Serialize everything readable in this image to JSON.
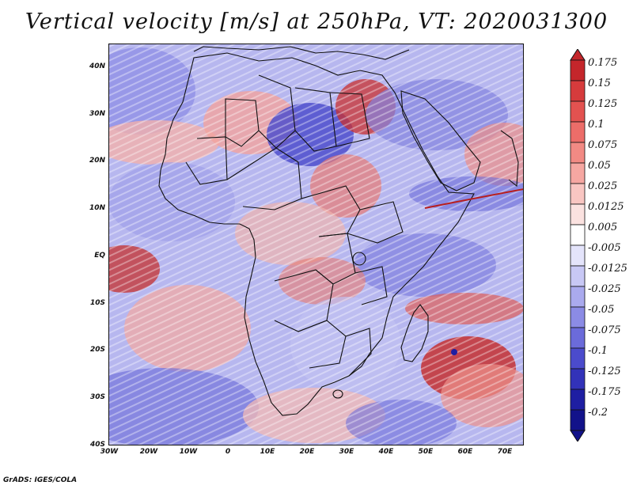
{
  "title": "Vertical velocity [m/s] at 250hPa, VT: 2020031300",
  "footer": "GrADS: IGES/COLA",
  "map": {
    "region": "Africa",
    "field": "vertical velocity",
    "level": "250hPa",
    "lat_labels": [
      "40N",
      "30N",
      "20N",
      "10N",
      "EQ",
      "10S",
      "20S",
      "30S",
      "40S"
    ],
    "lon_labels": [
      "30W",
      "20W",
      "10W",
      "0",
      "10E",
      "20E",
      "30E",
      "40E",
      "50E",
      "60E",
      "70E"
    ]
  },
  "colorbar": {
    "levels": [
      "0.175",
      "0.15",
      "0.125",
      "0.1",
      "0.075",
      "0.05",
      "0.025",
      "0.0125",
      "0.005",
      "-0.005",
      "-0.0125",
      "-0.025",
      "-0.05",
      "-0.075",
      "-0.1",
      "-0.125",
      "-0.175",
      "-0.2"
    ],
    "colors": [
      "#c4262b",
      "#d63b3c",
      "#e35250",
      "#ec6d69",
      "#f28a84",
      "#f6a7a2",
      "#f9c6c2",
      "#fbe2e0",
      "#ffffff",
      "#e4e4fb",
      "#c8c8f5",
      "#aaaaee",
      "#8b8be5",
      "#6b6bda",
      "#4b4bcc",
      "#3232b9",
      "#1e1ea2",
      "#12128a"
    ]
  }
}
